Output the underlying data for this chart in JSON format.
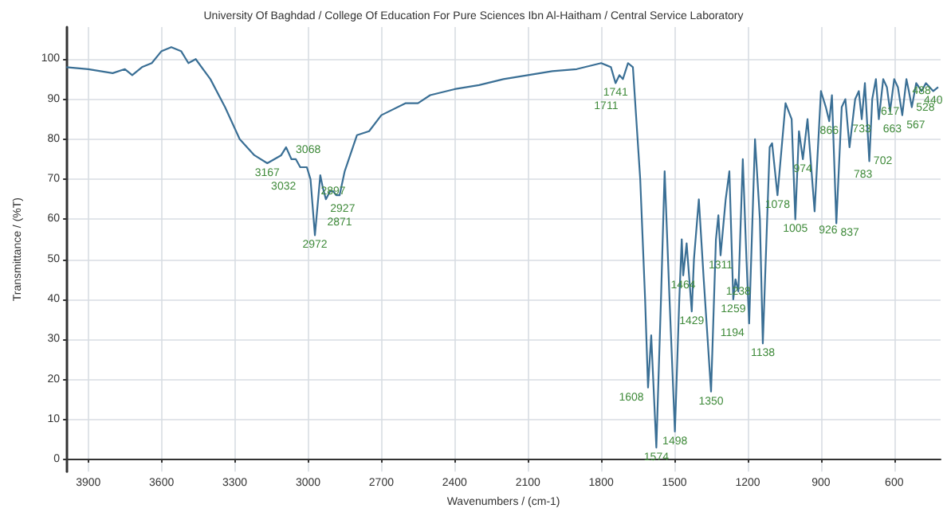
{
  "chart_data": {
    "type": "line",
    "title": "University Of Baghdad / College Of Education For Pure Sciences Ibn Al-Haitham / Central Service Laboratory",
    "xlabel": "Wavenumbers / (cm-1)",
    "ylabel": "Transmittance / (%T)",
    "xlim": [
      3990,
      410
    ],
    "xticks": [
      3900,
      3600,
      3300,
      3000,
      2700,
      2400,
      2100,
      1800,
      1500,
      1200,
      900,
      600
    ],
    "ylim": [
      -3,
      108
    ],
    "yticks": [
      0,
      10,
      20,
      30,
      40,
      50,
      60,
      70,
      80,
      90,
      100
    ],
    "grid": true,
    "marker": "none",
    "line_style": "solid",
    "series": [
      {
        "color": "#3a6f95",
        "x": [
          3990,
          3900,
          3800,
          3750,
          3720,
          3680,
          3640,
          3600,
          3560,
          3520,
          3490,
          3460,
          3400,
          3340,
          3280,
          3220,
          3167,
          3110,
          3090,
          3068,
          3050,
          3032,
          3005,
          2990,
          2972,
          2950,
          2940,
          2927,
          2910,
          2897,
          2885,
          2871,
          2850,
          2800,
          2750,
          2700,
          2600,
          2550,
          2500,
          2400,
          2300,
          2200,
          2100,
          2000,
          1900,
          1800,
          1760,
          1741,
          1725,
          1711,
          1690,
          1670,
          1640,
          1620,
          1608,
          1595,
          1574,
          1555,
          1540,
          1520,
          1498,
          1480,
          1470,
          1464,
          1450,
          1429,
          1420,
          1400,
          1380,
          1350,
          1330,
          1320,
          1311,
          1290,
          1275,
          1259,
          1250,
          1238,
          1220,
          1205,
          1194,
          1170,
          1150,
          1138,
          1110,
          1100,
          1078,
          1045,
          1020,
          1005,
          990,
          974,
          955,
          926,
          900,
          880,
          866,
          855,
          837,
          815,
          800,
          783,
          760,
          745,
          733,
          720,
          702,
          690,
          675,
          663,
          645,
          630,
          617,
          600,
          585,
          567,
          550,
          540,
          528,
          510,
          488,
          470,
          455,
          440,
          420
        ],
        "values": [
          98,
          97.5,
          96.5,
          97.5,
          96,
          98,
          99,
          102,
          103,
          102,
          99,
          100,
          95,
          88,
          80,
          76,
          74,
          76,
          78,
          75,
          75,
          73,
          73,
          70,
          56,
          71,
          68,
          65,
          67,
          67,
          66,
          66,
          72,
          81,
          82,
          86,
          89,
          89,
          91,
          92.5,
          93.5,
          95,
          96,
          97,
          97.5,
          99,
          98,
          94,
          96,
          95,
          99,
          98,
          70,
          40,
          18,
          31,
          3,
          40,
          72,
          40,
          7,
          40,
          55,
          46,
          54,
          37,
          50,
          65,
          45,
          17,
          55,
          61,
          51,
          65,
          72,
          40,
          45,
          42,
          75,
          50,
          34,
          80,
          60,
          29,
          78,
          79,
          66,
          89,
          85,
          60,
          82,
          75,
          85,
          62,
          92,
          88,
          84.5,
          91,
          59,
          88,
          90,
          78,
          90,
          92,
          85,
          94,
          74.5,
          90,
          95,
          85,
          95,
          93,
          87,
          95,
          93,
          86,
          95,
          92,
          88,
          94,
          92,
          94,
          93,
          92,
          93
        ]
      }
    ],
    "annotations": [
      {
        "text": "3167",
        "x": 3167,
        "y": 74
      },
      {
        "text": "3068",
        "x": 3068,
        "y": 75
      },
      {
        "text": "3032",
        "x": 3032,
        "y": 73
      },
      {
        "text": "2972",
        "x": 2972,
        "y": 56
      },
      {
        "text": "2927",
        "x": 2927,
        "y": 65
      },
      {
        "text": "2897",
        "x": 2897,
        "y": 67
      },
      {
        "text": "2871",
        "x": 2871,
        "y": 66
      },
      {
        "text": "1741",
        "x": 1741,
        "y": 94
      },
      {
        "text": "1711",
        "x": 1711,
        "y": 95
      },
      {
        "text": "1608",
        "x": 1608,
        "y": 18
      },
      {
        "text": "1574",
        "x": 1574,
        "y": 3
      },
      {
        "text": "1498",
        "x": 1498,
        "y": 7
      },
      {
        "text": "1464",
        "x": 1464,
        "y": 46
      },
      {
        "text": "1429",
        "x": 1429,
        "y": 37
      },
      {
        "text": "1350",
        "x": 1350,
        "y": 17
      },
      {
        "text": "1311",
        "x": 1311,
        "y": 51
      },
      {
        "text": "1259",
        "x": 1259,
        "y": 40
      },
      {
        "text": "1238",
        "x": 1238,
        "y": 42
      },
      {
        "text": "1194",
        "x": 1194,
        "y": 34
      },
      {
        "text": "1138",
        "x": 1138,
        "y": 29
      },
      {
        "text": "1078",
        "x": 1078,
        "y": 66
      },
      {
        "text": "1005",
        "x": 1005,
        "y": 60
      },
      {
        "text": "974",
        "x": 974,
        "y": 75
      },
      {
        "text": "926",
        "x": 926,
        "y": 62
      },
      {
        "text": "866",
        "x": 866,
        "y": 84.5
      },
      {
        "text": "837",
        "x": 837,
        "y": 59
      },
      {
        "text": "783",
        "x": 783,
        "y": 78
      },
      {
        "text": "733",
        "x": 733,
        "y": 85
      },
      {
        "text": "702",
        "x": 702,
        "y": 74.5
      },
      {
        "text": "663",
        "x": 663,
        "y": 85
      },
      {
        "text": "617",
        "x": 617,
        "y": 87
      },
      {
        "text": "567",
        "x": 567,
        "y": 86
      },
      {
        "text": "528",
        "x": 528,
        "y": 88
      },
      {
        "text": "488",
        "x": 488,
        "y": 92
      },
      {
        "text": "440",
        "x": 440,
        "y": 92
      }
    ]
  }
}
